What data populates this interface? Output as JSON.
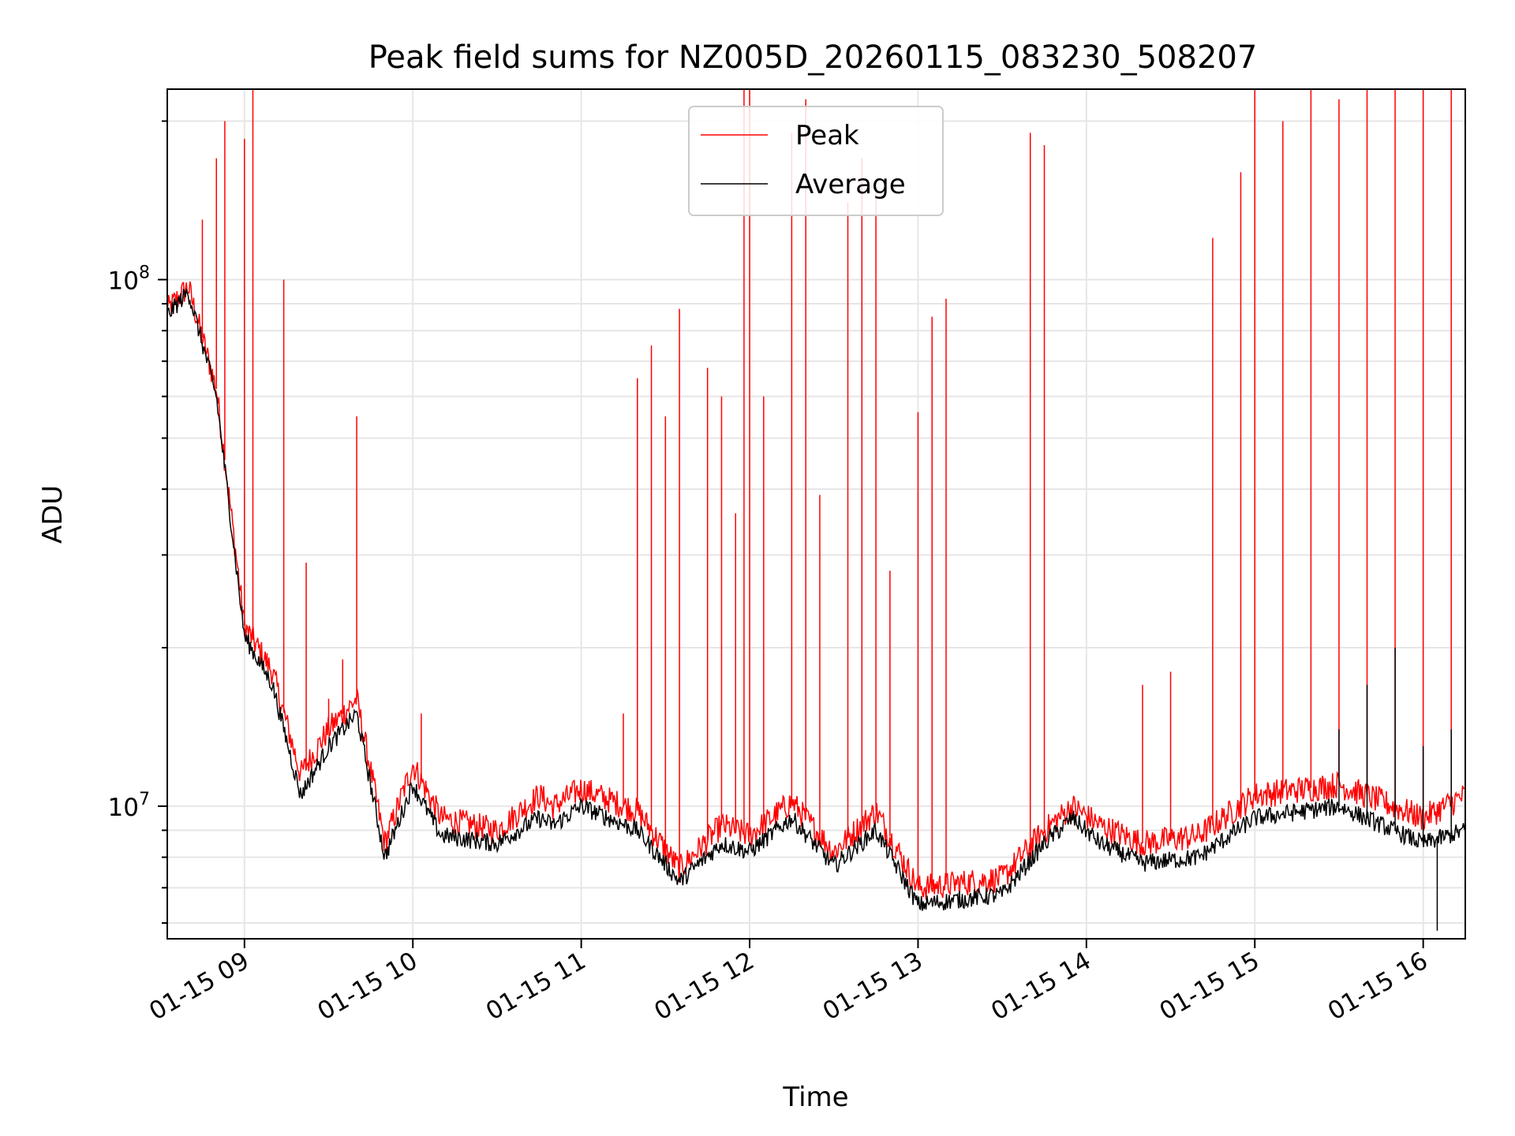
{
  "chart_data": {
    "type": "line",
    "title": "Peak field sums for NZ005D_20260115_083230_508207",
    "xlabel": "Time",
    "ylabel": "ADU",
    "yscale": "log",
    "xlim": [
      "2026-01-15T08:32:30",
      "2026-01-15T16:15:00"
    ],
    "ylim": [
      5600000,
      230000000
    ],
    "grid": true,
    "legend_position": "upper center",
    "x_ticks": [
      {
        "time": "2026-01-15T09:00",
        "label": "01-15 09"
      },
      {
        "time": "2026-01-15T10:00",
        "label": "01-15 10"
      },
      {
        "time": "2026-01-15T11:00",
        "label": "01-15 11"
      },
      {
        "time": "2026-01-15T12:00",
        "label": "01-15 12"
      },
      {
        "time": "2026-01-15T13:00",
        "label": "01-15 13"
      },
      {
        "time": "2026-01-15T14:00",
        "label": "01-15 14"
      },
      {
        "time": "2026-01-15T15:00",
        "label": "01-15 15"
      },
      {
        "time": "2026-01-15T16:00",
        "label": "01-15 16"
      }
    ],
    "y_ticks": [
      {
        "value": 10000000,
        "base": "10",
        "exp": "7"
      },
      {
        "value": 100000000,
        "base": "10",
        "exp": "8"
      }
    ],
    "series": [
      {
        "name": "Peak",
        "color": "#ff0000",
        "baseline": [
          [
            "2026-01-15T08:32",
            87000000
          ],
          [
            "2026-01-15T08:40",
            97000000
          ],
          [
            "2026-01-15T08:50",
            62000000
          ],
          [
            "2026-01-15T09:00",
            22000000
          ],
          [
            "2026-01-15T09:10",
            18000000
          ],
          [
            "2026-01-15T09:20",
            11500000
          ],
          [
            "2026-01-15T09:30",
            14000000
          ],
          [
            "2026-01-15T09:40",
            16000000
          ],
          [
            "2026-01-15T09:50",
            8500000
          ],
          [
            "2026-01-15T10:00",
            12000000
          ],
          [
            "2026-01-15T10:10",
            9500000
          ],
          [
            "2026-01-15T10:30",
            9000000
          ],
          [
            "2026-01-15T10:45",
            10500000
          ],
          [
            "2026-01-15T10:50",
            10000000
          ],
          [
            "2026-01-15T11:00",
            10800000
          ],
          [
            "2026-01-15T11:20",
            9800000
          ],
          [
            "2026-01-15T11:35",
            7600000
          ],
          [
            "2026-01-15T11:50",
            9200000
          ],
          [
            "2026-01-15T12:00",
            8800000
          ],
          [
            "2026-01-15T12:15",
            10200000
          ],
          [
            "2026-01-15T12:30",
            8200000
          ],
          [
            "2026-01-15T12:45",
            9800000
          ],
          [
            "2026-01-15T13:00",
            7000000
          ],
          [
            "2026-01-15T13:30",
            7300000
          ],
          [
            "2026-01-15T13:45",
            9000000
          ],
          [
            "2026-01-15T13:55",
            10000000
          ],
          [
            "2026-01-15T14:05",
            9200000
          ],
          [
            "2026-01-15T14:20",
            8500000
          ],
          [
            "2026-01-15T14:40",
            8800000
          ],
          [
            "2026-01-15T15:00",
            10500000
          ],
          [
            "2026-01-15T15:30",
            11000000
          ],
          [
            "2026-01-15T16:00",
            9500000
          ],
          [
            "2026-01-15T16:15",
            10500000
          ]
        ],
        "spikes": [
          [
            "2026-01-15T08:45",
            130000000
          ],
          [
            "2026-01-15T08:50",
            170000000
          ],
          [
            "2026-01-15T08:53",
            200000000
          ],
          [
            "2026-01-15T09:00",
            185000000
          ],
          [
            "2026-01-15T09:03",
            230000000
          ],
          [
            "2026-01-15T09:14",
            100000000
          ],
          [
            "2026-01-15T09:22",
            29000000
          ],
          [
            "2026-01-15T09:30",
            16000000
          ],
          [
            "2026-01-15T09:35",
            19000000
          ],
          [
            "2026-01-15T09:40",
            55000000
          ],
          [
            "2026-01-15T10:03",
            15000000
          ],
          [
            "2026-01-15T11:15",
            15000000
          ],
          [
            "2026-01-15T11:20",
            65000000
          ],
          [
            "2026-01-15T11:25",
            75000000
          ],
          [
            "2026-01-15T11:30",
            55000000
          ],
          [
            "2026-01-15T11:35",
            88000000
          ],
          [
            "2026-01-15T11:45",
            68000000
          ],
          [
            "2026-01-15T11:50",
            60000000
          ],
          [
            "2026-01-15T11:55",
            36000000
          ],
          [
            "2026-01-15T11:58",
            230000000
          ],
          [
            "2026-01-15T12:00",
            230000000
          ],
          [
            "2026-01-15T12:05",
            60000000
          ],
          [
            "2026-01-15T12:15",
            190000000
          ],
          [
            "2026-01-15T12:20",
            220000000
          ],
          [
            "2026-01-15T12:25",
            39000000
          ],
          [
            "2026-01-15T12:35",
            140000000
          ],
          [
            "2026-01-15T12:40",
            170000000
          ],
          [
            "2026-01-15T12:45",
            150000000
          ],
          [
            "2026-01-15T12:50",
            28000000
          ],
          [
            "2026-01-15T13:00",
            56000000
          ],
          [
            "2026-01-15T13:05",
            85000000
          ],
          [
            "2026-01-15T13:10",
            92000000
          ],
          [
            "2026-01-15T13:40",
            190000000
          ],
          [
            "2026-01-15T13:45",
            180000000
          ],
          [
            "2026-01-15T14:20",
            17000000
          ],
          [
            "2026-01-15T14:30",
            18000000
          ],
          [
            "2026-01-15T14:45",
            120000000
          ],
          [
            "2026-01-15T14:55",
            160000000
          ],
          [
            "2026-01-15T15:00",
            230000000
          ],
          [
            "2026-01-15T15:10",
            200000000
          ],
          [
            "2026-01-15T15:20",
            230000000
          ],
          [
            "2026-01-15T15:30",
            220000000
          ],
          [
            "2026-01-15T15:40",
            230000000
          ],
          [
            "2026-01-15T15:50",
            230000000
          ],
          [
            "2026-01-15T16:00",
            230000000
          ],
          [
            "2026-01-15T16:10",
            230000000
          ]
        ]
      },
      {
        "name": "Average",
        "color": "#000000",
        "baseline": [
          [
            "2026-01-15T08:32",
            85000000
          ],
          [
            "2026-01-15T08:40",
            95000000
          ],
          [
            "2026-01-15T08:50",
            60000000
          ],
          [
            "2026-01-15T09:00",
            21000000
          ],
          [
            "2026-01-15T09:10",
            17000000
          ],
          [
            "2026-01-15T09:20",
            10500000
          ],
          [
            "2026-01-15T09:30",
            13000000
          ],
          [
            "2026-01-15T09:40",
            15000000
          ],
          [
            "2026-01-15T09:50",
            8000000
          ],
          [
            "2026-01-15T10:00",
            11000000
          ],
          [
            "2026-01-15T10:10",
            8800000
          ],
          [
            "2026-01-15T10:30",
            8500000
          ],
          [
            "2026-01-15T10:45",
            9500000
          ],
          [
            "2026-01-15T10:50",
            9200000
          ],
          [
            "2026-01-15T11:00",
            10000000
          ],
          [
            "2026-01-15T11:20",
            9000000
          ],
          [
            "2026-01-15T11:35",
            7200000
          ],
          [
            "2026-01-15T11:50",
            8500000
          ],
          [
            "2026-01-15T12:00",
            8200000
          ],
          [
            "2026-01-15T12:15",
            9500000
          ],
          [
            "2026-01-15T12:30",
            7700000
          ],
          [
            "2026-01-15T12:45",
            9000000
          ],
          [
            "2026-01-15T13:00",
            6500000
          ],
          [
            "2026-01-15T13:30",
            6800000
          ],
          [
            "2026-01-15T13:45",
            8500000
          ],
          [
            "2026-01-15T13:55",
            9500000
          ],
          [
            "2026-01-15T14:05",
            8500000
          ],
          [
            "2026-01-15T14:20",
            7800000
          ],
          [
            "2026-01-15T14:40",
            8000000
          ],
          [
            "2026-01-15T15:00",
            9500000
          ],
          [
            "2026-01-15T15:30",
            10000000
          ],
          [
            "2026-01-15T16:00",
            8500000
          ],
          [
            "2026-01-15T16:15",
            9000000
          ]
        ],
        "spikes": [
          [
            "2026-01-15T15:30",
            14000000
          ],
          [
            "2026-01-15T15:40",
            17000000
          ],
          [
            "2026-01-15T15:50",
            20000000
          ],
          [
            "2026-01-15T16:00",
            13000000
          ],
          [
            "2026-01-15T16:05",
            5800000
          ],
          [
            "2026-01-15T16:10",
            14000000
          ]
        ]
      }
    ]
  }
}
